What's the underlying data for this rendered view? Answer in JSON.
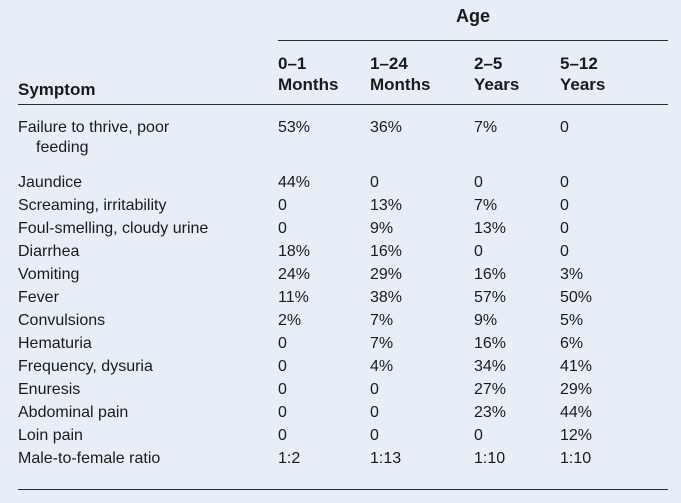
{
  "table": {
    "age_header": "Age",
    "symptom_header": "Symptom",
    "columns": [
      [
        "0–1",
        "Months"
      ],
      [
        "1–24",
        "Months"
      ],
      [
        "2–5",
        "Years"
      ],
      [
        "5–12",
        "Years"
      ]
    ],
    "rows": [
      {
        "symptom": "Failure to thrive, poor",
        "symptom_cont": "feeding",
        "values": [
          "53%",
          "36%",
          "7%",
          "0"
        ]
      },
      {
        "symptom": "Jaundice",
        "values": [
          "44%",
          "0",
          "0",
          "0"
        ]
      },
      {
        "symptom": "Screaming, irritability",
        "values": [
          "0",
          "13%",
          "7%",
          "0"
        ]
      },
      {
        "symptom": "Foul-smelling, cloudy urine",
        "values": [
          "0",
          "9%",
          "13%",
          "0"
        ]
      },
      {
        "symptom": "Diarrhea",
        "values": [
          "18%",
          "16%",
          "0",
          "0"
        ]
      },
      {
        "symptom": "Vomiting",
        "values": [
          "24%",
          "29%",
          "16%",
          "3%"
        ]
      },
      {
        "symptom": "Fever",
        "values": [
          "11%",
          "38%",
          "57%",
          "50%"
        ]
      },
      {
        "symptom": "Convulsions",
        "values": [
          "2%",
          "7%",
          "9%",
          "5%"
        ]
      },
      {
        "symptom": "Hematuria",
        "values": [
          "0",
          "7%",
          "16%",
          "6%"
        ]
      },
      {
        "symptom": "Frequency, dysuria",
        "values": [
          "0",
          "4%",
          "34%",
          "41%"
        ]
      },
      {
        "symptom": "Enuresis",
        "values": [
          "0",
          "0",
          "27%",
          "29%"
        ]
      },
      {
        "symptom": "Abdominal pain",
        "values": [
          "0",
          "0",
          "23%",
          "44%"
        ]
      },
      {
        "symptom": "Loin pain",
        "values": [
          "0",
          "0",
          "0",
          "12%"
        ]
      },
      {
        "symptom": "Male-to-female ratio",
        "values": [
          "1:2",
          "1:13",
          "1:10",
          "1:10"
        ]
      }
    ]
  }
}
